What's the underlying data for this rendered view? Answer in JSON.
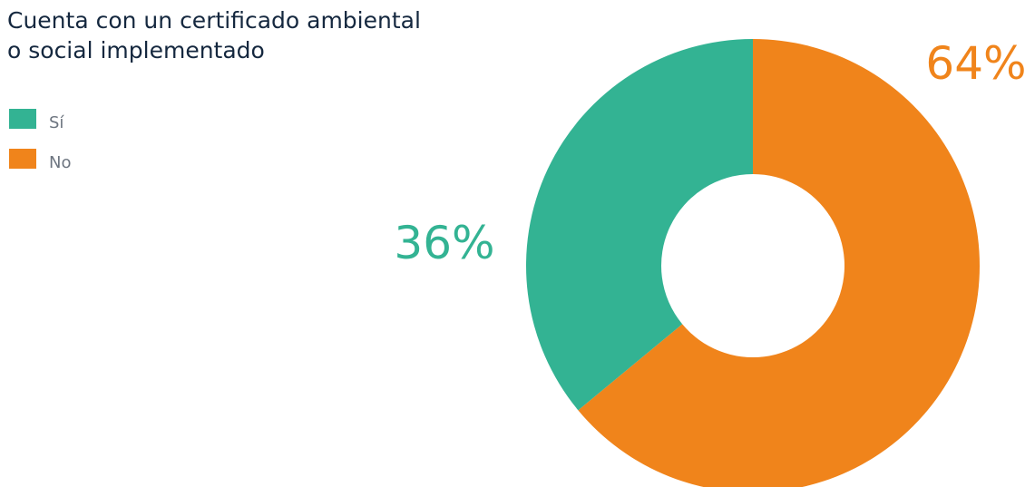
{
  "chart_data": {
    "type": "pie",
    "title_lines": [
      "Cuenta con un certificado ambiental",
      "o social implementado"
    ],
    "slices": [
      {
        "label": "Sí",
        "value": 36,
        "display": "36%",
        "color": "#33b393"
      },
      {
        "label": "No",
        "value": 64,
        "display": "64%",
        "color": "#f0841b"
      }
    ],
    "donut": true,
    "legend": "top-left"
  }
}
